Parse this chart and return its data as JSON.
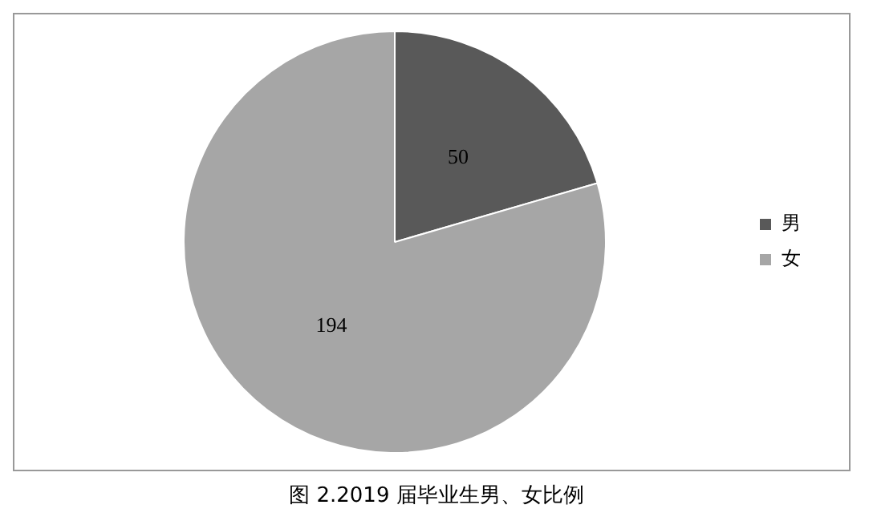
{
  "chart_data": {
    "type": "pie",
    "title": "图 2.2019 届毕业生男、女比例",
    "categories": [
      "男",
      "女"
    ],
    "values": [
      50,
      194
    ],
    "colors": [
      "#595959",
      "#a6a6a6"
    ],
    "data_labels": true,
    "legend": "right"
  }
}
